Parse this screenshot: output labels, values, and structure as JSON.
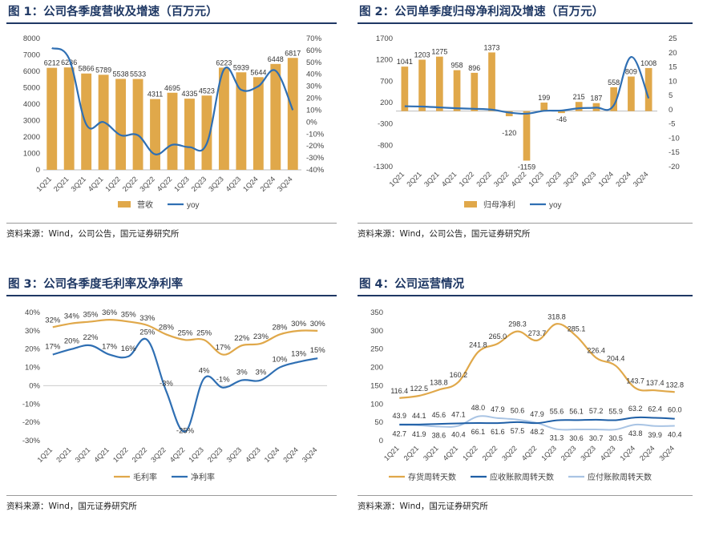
{
  "charts": [
    {
      "figure_title": "图 1：公司各季度营收及增速（百万元）",
      "source": "资料来源：Wind，公司公告，国元证券研究所",
      "chart_data": {
        "type": "bar",
        "categories": [
          "1Q21",
          "2Q21",
          "3Q21",
          "4Q21",
          "1Q22",
          "2Q22",
          "3Q22",
          "4Q22",
          "1Q23",
          "2Q23",
          "3Q23",
          "4Q23",
          "1Q24",
          "2Q24",
          "3Q24"
        ],
        "series": [
          {
            "name": "营收",
            "type": "bar",
            "axis": "left",
            "color": "#e0a84a",
            "values": [
              6212,
              6236,
              5866,
              5789,
              5538,
              5533,
              4311,
              4695,
              4335,
              4523,
              6223,
              5939,
              5644,
              6448,
              6817
            ]
          },
          {
            "name": "yoy",
            "type": "line",
            "axis": "right",
            "color": "#2f6fb3",
            "values": [
              62,
              53,
              -2,
              0,
              -11,
              -11,
              -27,
              -19,
              -21,
              -18,
              44,
              27,
              30,
              43,
              10
            ]
          }
        ],
        "ylim": [
          0,
          8000
        ],
        "yticks": [
          0,
          1000,
          2000,
          3000,
          4000,
          5000,
          6000,
          7000,
          8000
        ],
        "y2lim": [
          -40,
          70
        ],
        "y2ticks": [
          "-40%",
          "-30%",
          "-20%",
          "-10%",
          "0%",
          "10%",
          "20%",
          "30%",
          "40%",
          "50%",
          "60%",
          "70%"
        ],
        "legend": "bottom"
      }
    },
    {
      "figure_title": "图 2：公司单季度归母净利润及增速（百万元）",
      "source": "资料来源：Wind，公司公告，国元证券研究所",
      "chart_data": {
        "type": "bar",
        "categories": [
          "1Q21",
          "2Q21",
          "3Q21",
          "4Q21",
          "1Q22",
          "2Q22",
          "3Q22",
          "4Q22",
          "1Q23",
          "2Q23",
          "3Q23",
          "4Q23",
          "1Q24",
          "2Q24",
          "3Q24"
        ],
        "series": [
          {
            "name": "归母净利",
            "type": "bar",
            "axis": "left",
            "color": "#e0a84a",
            "values": [
              1041,
              1203,
              1275,
              958,
              896,
              1373,
              -120,
              -1159,
              199,
              -46,
              215,
              187,
              558,
              809,
              1008
            ]
          },
          {
            "name": "yoy",
            "type": "line",
            "axis": "right",
            "color": "#2f6fb3",
            "values": [
              1.2,
              1.1,
              0.8,
              0.5,
              0.3,
              0,
              -1,
              -1.4,
              -0.4,
              -0.3,
              0.5,
              0.7,
              1.5,
              18.5,
              4
            ]
          }
        ],
        "ylim": [
          -1300,
          1700
        ],
        "yticks": [
          -1300,
          -800,
          -300,
          200,
          700,
          1200,
          1700
        ],
        "y2lim": [
          -20,
          25
        ],
        "y2ticks": [
          -20,
          -15,
          -10,
          -5,
          0,
          5,
          10,
          15,
          20,
          25
        ],
        "legend": "bottom"
      }
    },
    {
      "figure_title": "图 3：公司各季度毛利率及净利率",
      "source": "资料来源：Wind，国元证券研究所",
      "chart_data": {
        "type": "line",
        "categories": [
          "1Q21",
          "2Q21",
          "3Q21",
          "4Q21",
          "1Q22",
          "2Q22",
          "3Q22",
          "4Q22",
          "1Q23",
          "2Q23",
          "3Q23",
          "4Q23",
          "1Q24",
          "2Q24",
          "3Q24"
        ],
        "series": [
          {
            "name": "毛利率",
            "color": "#e0a84a",
            "values": [
              32,
              34,
              35,
              36,
              35,
              33,
              28,
              25,
              25,
              17,
              22,
              23,
              28,
              30,
              30
            ],
            "labels": [
              "32%",
              "34%",
              "35%",
              "36%",
              "35%",
              "33%",
              "28%",
              "25%",
              "25%",
              "17%",
              "22%",
              "23%",
              "28%",
              "30%",
              "30%"
            ]
          },
          {
            "name": "净利率",
            "color": "#2f6fb3",
            "values": [
              17,
              20,
              22,
              17,
              16,
              25,
              -3,
              -25,
              4,
              -1,
              3,
              3,
              10,
              13,
              15
            ],
            "labels": [
              "17%",
              "20%",
              "22%",
              "17%",
              "16%",
              "25%",
              "-3%",
              "-25%",
              "4%",
              "-1%",
              "3%",
              "3%",
              "10%",
              "13%",
              "15%"
            ]
          }
        ],
        "ylim": [
          -30,
          40
        ],
        "yticks": [
          "-30%",
          "-20%",
          "-10%",
          "0%",
          "10%",
          "20%",
          "30%",
          "40%"
        ],
        "legend": "bottom"
      }
    },
    {
      "figure_title": "图 4：公司运营情况",
      "source": "资料来源：Wind，国元证券研究所",
      "chart_data": {
        "type": "line",
        "categories": [
          "1Q21",
          "2Q21",
          "3Q21",
          "4Q21",
          "1Q22",
          "2Q22",
          "3Q22",
          "4Q22",
          "1Q23",
          "2Q23",
          "3Q23",
          "4Q23",
          "1Q24",
          "2Q24",
          "3Q24"
        ],
        "series": [
          {
            "name": "存货周转天数",
            "color": "#e0a84a",
            "values": [
              116.4,
              122.5,
              138.8,
              160.2,
              241.8,
              265.0,
              298.3,
              273.7,
              318.8,
              285.1,
              226.4,
              204.4,
              143.7,
              137.4,
              132.8
            ],
            "labels": [
              "116.4",
              "122.5",
              "138.8",
              "160.2",
              "241.8",
              "265.0",
              "298.3",
              "273.7",
              "318.8",
              "285.1",
              "226.4",
              "204.4",
              "143.7",
              "137.4",
              "132.8"
            ]
          },
          {
            "name": "应收账款周转天数",
            "color": "#1f5fa6",
            "values": [
              43.9,
              44.1,
              45.6,
              47.1,
              48.0,
              47.9,
              50.6,
              47.9,
              55.6,
              56.1,
              57.2,
              55.9,
              63.2,
              62.4,
              60.0
            ],
            "labels": [
              "43.9",
              "44.1",
              "45.6",
              "47.1",
              "48.0",
              "47.9",
              "50.6",
              "47.9",
              "55.6",
              "56.1",
              "57.2",
              "55.9",
              "63.2",
              "62.4",
              "60.0"
            ]
          },
          {
            "name": "应付账款周转天数",
            "color": "#a9c4e4",
            "values": [
              42.7,
              41.9,
              38.6,
              40.4,
              66.1,
              61.6,
              57.5,
              48.2,
              31.3,
              30.6,
              30.7,
              30.5,
              43.8,
              39.9,
              40.4
            ],
            "labels": [
              "42.7",
              "41.9",
              "38.6",
              "40.4",
              "66.1",
              "61.6",
              "57.5",
              "48.2",
              "31.3",
              "30.6",
              "30.7",
              "30.5",
              "43.8",
              "39.9",
              "40.4"
            ]
          }
        ],
        "ylim": [
          0,
          350
        ],
        "yticks": [
          0,
          50,
          100,
          150,
          200,
          250,
          300,
          350
        ],
        "legend": "bottom"
      }
    }
  ]
}
